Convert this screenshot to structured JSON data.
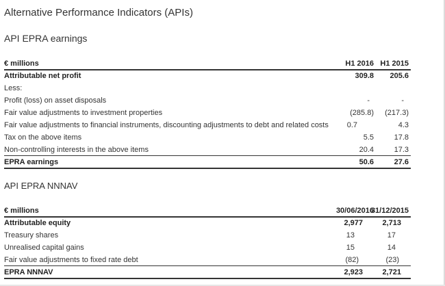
{
  "page_title": "Alternative Performance Indicators (APIs)",
  "earnings": {
    "heading": "API EPRA earnings",
    "unit_label": "€ millions",
    "col1": "H1 2016",
    "col2": "H1 2015",
    "rows": [
      {
        "label": "Attributable net profit",
        "v1": "309.8",
        "v2": "205.6"
      },
      {
        "label": "Less:",
        "v1": "",
        "v2": ""
      },
      {
        "label": "Profit (loss) on asset disposals",
        "v1": "-",
        "v2": "-"
      },
      {
        "label": "Fair value adjustments to investment properties",
        "v1": "(285.8)",
        "v2": "(217.3)"
      },
      {
        "label": "Fair value adjustments to financial instruments, discounting adjustments to debt and related costs",
        "v1": "0.7",
        "v2": "4.3"
      },
      {
        "label": "Tax on the above items",
        "v1": "5.5",
        "v2": "17.8"
      },
      {
        "label": "Non-controlling interests in the above items",
        "v1": "20.4",
        "v2": "17.3"
      },
      {
        "label": "EPRA earnings",
        "v1": "50.6",
        "v2": "27.6"
      }
    ]
  },
  "nnnav": {
    "heading": "API EPRA NNNAV",
    "unit_label": "€ millions",
    "col1": "30/06/2016",
    "col2": "31/12/2015",
    "rows": [
      {
        "label": "Attributable equity",
        "v1": "2,977",
        "v2": "2,713"
      },
      {
        "label": "Treasury shares",
        "v1": "13",
        "v2": "17"
      },
      {
        "label": "Unrealised capital gains",
        "v1": "15",
        "v2": "14"
      },
      {
        "label": "Fair value adjustments to fixed rate debt",
        "v1": "(82)",
        "v2": "(23)"
      },
      {
        "label": "EPRA NNNAV",
        "v1": "2,923",
        "v2": "2,721"
      }
    ]
  }
}
